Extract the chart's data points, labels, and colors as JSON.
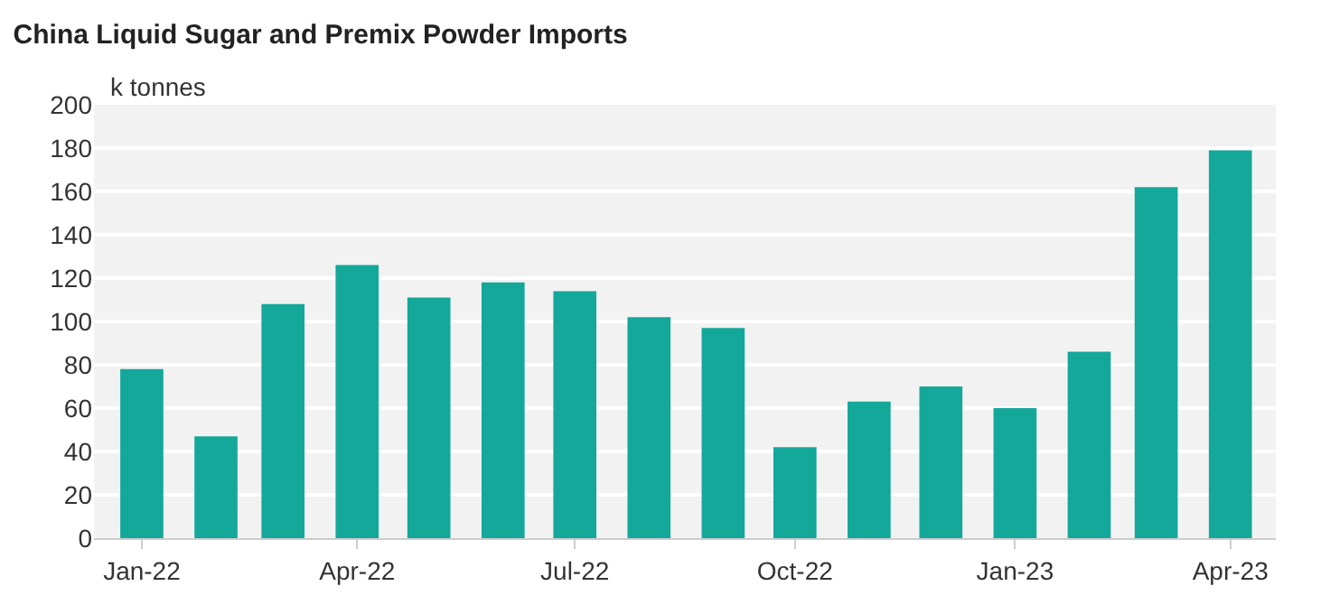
{
  "chart_data": {
    "type": "bar",
    "title": "China Liquid Sugar and Premix Powder Imports",
    "ylabel": "k tonnes",
    "x": [
      "2022-01",
      "2022-02",
      "2022-03",
      "2022-04",
      "2022-05",
      "2022-06",
      "2022-07",
      "2022-08",
      "2022-09",
      "2022-10",
      "2022-11",
      "2022-12",
      "2023-01",
      "2023-02",
      "2023-03",
      "2023-04"
    ],
    "values": [
      78,
      47,
      108,
      126,
      111,
      118,
      114,
      102,
      97,
      42,
      63,
      70,
      60,
      86,
      162,
      179
    ],
    "color": "#14a89b",
    "xlim": [
      "2021-12-12",
      "2023-04-20"
    ],
    "xticks": [
      {
        "value": "2022-01",
        "label": "Jan-22"
      },
      {
        "value": "2022-04",
        "label": "Apr-22"
      },
      {
        "value": "2022-07",
        "label": "Jul-22"
      },
      {
        "value": "2022-10",
        "label": "Oct-22"
      },
      {
        "value": "2023-01",
        "label": "Jan-23"
      },
      {
        "value": "2023-04",
        "label": "Apr-23"
      }
    ],
    "ylim": [
      0,
      200
    ],
    "yticks": [
      0,
      20,
      40,
      60,
      80,
      100,
      120,
      140,
      160,
      180,
      200
    ],
    "grid": "y"
  }
}
